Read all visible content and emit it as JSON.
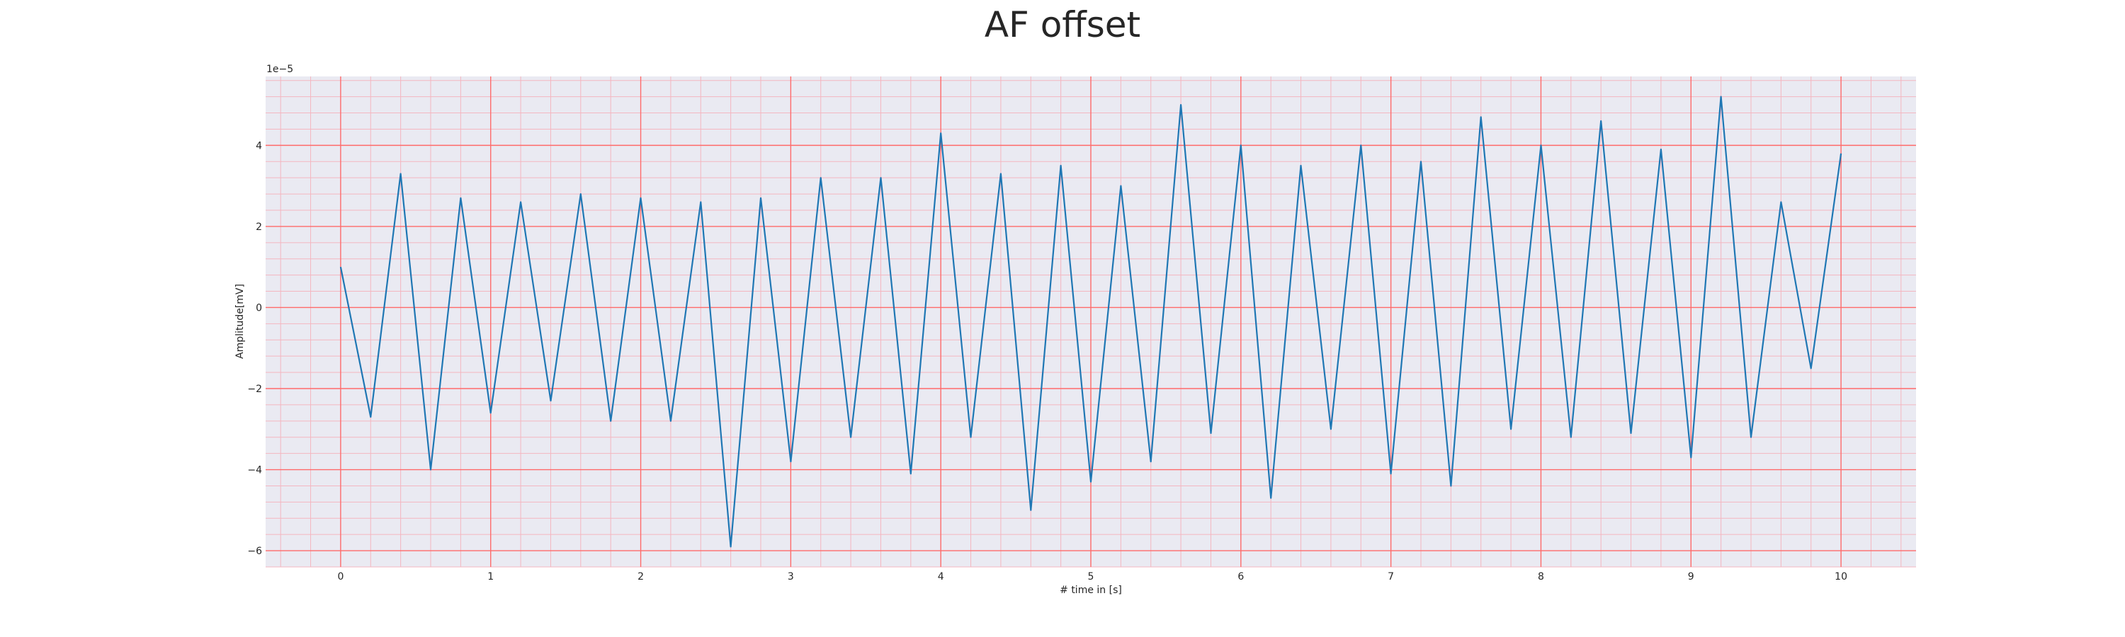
{
  "chart_data": {
    "type": "line",
    "title": "AF offset",
    "xlabel": "# time in [s]",
    "ylabel": "Amplitude[mV]",
    "y_offset_text": "1e−5",
    "xlim": [
      -0.5,
      10.5
    ],
    "ylim": [
      -6.4,
      5.7
    ],
    "x_ticks": [
      0,
      1,
      2,
      3,
      4,
      5,
      6,
      7,
      8,
      9,
      10
    ],
    "y_ticks": [
      -6,
      -4,
      -2,
      0,
      2,
      4
    ],
    "x_tick_labels": [
      "0",
      "1",
      "2",
      "3",
      "4",
      "5",
      "6",
      "7",
      "8",
      "9",
      "10"
    ],
    "y_tick_labels": [
      "−6",
      "−4",
      "−2",
      "0",
      "2",
      "4"
    ],
    "grid": true,
    "minor_grid": true,
    "colors": {
      "line": "#1f77b4",
      "grid_major": "#ff6a6a",
      "grid_minor": "#f4b6c0",
      "background": "#eaeaf2"
    },
    "series": [
      {
        "x": [
          0.0,
          0.2,
          0.4,
          0.6,
          0.8,
          1.0,
          1.2,
          1.4,
          1.6,
          1.8,
          2.0,
          2.2,
          2.4,
          2.6,
          2.8,
          3.0,
          3.2,
          3.4,
          3.6,
          3.8,
          4.0,
          4.2,
          4.4,
          4.6,
          4.8,
          5.0,
          5.2,
          5.4,
          5.6,
          5.8,
          6.0,
          6.2,
          6.4,
          6.6,
          6.8,
          7.0,
          7.2,
          7.4,
          7.6,
          7.8,
          8.0,
          8.2,
          8.4,
          8.6,
          8.8,
          9.0,
          9.2,
          9.4,
          9.6,
          9.8,
          10.0
        ],
        "y": [
          1.0,
          -2.7,
          3.3,
          -4.0,
          2.7,
          -2.6,
          2.6,
          -2.3,
          2.8,
          -2.8,
          2.7,
          -2.8,
          2.6,
          -5.9,
          2.7,
          -3.8,
          3.2,
          -3.2,
          3.2,
          -4.1,
          4.3,
          -3.2,
          3.3,
          -5.0,
          3.5,
          -4.3,
          3.0,
          -3.8,
          5.0,
          -3.1,
          4.0,
          -4.7,
          3.5,
          -3.0,
          4.0,
          -4.1,
          3.6,
          -4.4,
          4.7,
          -3.0,
          4.0,
          -3.2,
          4.6,
          -3.1,
          3.9,
          -3.7,
          5.2,
          -3.2,
          2.6,
          -1.5,
          3.8
        ]
      }
    ]
  }
}
